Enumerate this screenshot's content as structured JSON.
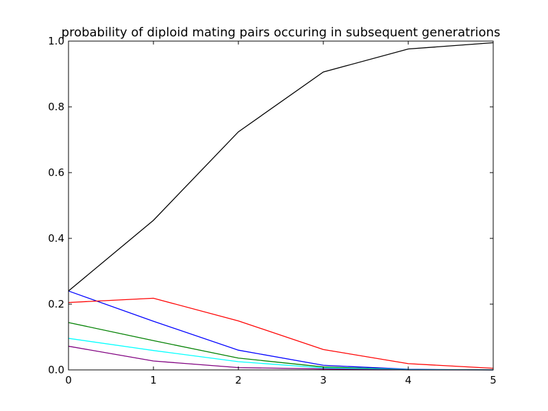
{
  "chart_data": {
    "type": "line",
    "title": "probability of diploid mating pairs occuring in subsequent generatrions",
    "xlabel": "",
    "ylabel": "",
    "xlim": [
      0,
      5
    ],
    "ylim": [
      0,
      1.0
    ],
    "x_ticks": [
      0,
      1,
      2,
      3,
      4,
      5
    ],
    "x_tick_labels": [
      "0",
      "1",
      "2",
      "3",
      "4",
      "5"
    ],
    "y_ticks": [
      0,
      0.2,
      0.4,
      0.6,
      0.8,
      1.0
    ],
    "y_tick_labels": [
      "0.0",
      "0.2",
      "0.4",
      "0.6",
      "0.8",
      "1.0"
    ],
    "grid": false,
    "x": [
      0,
      1,
      2,
      3,
      4,
      5
    ],
    "series": [
      {
        "color": "#0000ff",
        "values": [
          0.24,
          0.148,
          0.06,
          0.014,
          0.002,
          0.0
        ]
      },
      {
        "color": "#008000",
        "values": [
          0.144,
          0.089,
          0.036,
          0.009,
          0.001,
          0.0
        ]
      },
      {
        "color": "#ff0000",
        "values": [
          0.205,
          0.218,
          0.149,
          0.062,
          0.019,
          0.005
        ]
      },
      {
        "color": "#00ffff",
        "values": [
          0.096,
          0.059,
          0.025,
          0.006,
          0.001,
          0.0
        ]
      },
      {
        "color": "#800080",
        "values": [
          0.072,
          0.027,
          0.007,
          0.003,
          0.0,
          0.0
        ]
      },
      {
        "color": "#000000",
        "values": [
          0.24,
          0.455,
          0.724,
          0.906,
          0.976,
          0.995
        ]
      }
    ]
  }
}
